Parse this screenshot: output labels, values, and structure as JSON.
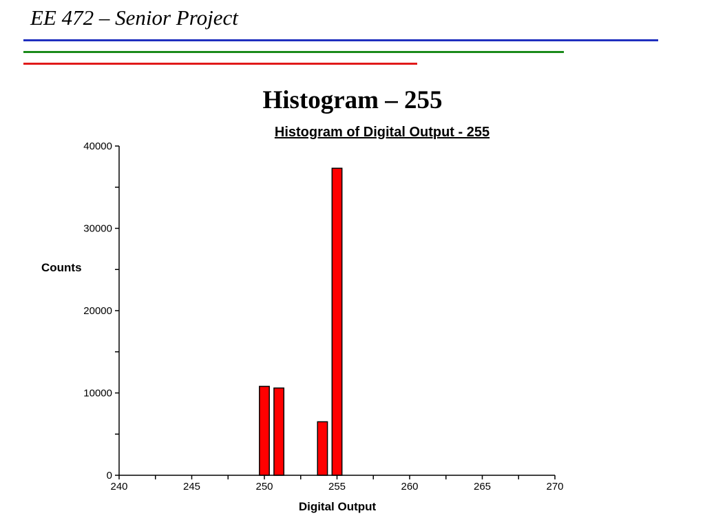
{
  "header": {
    "title": "EE 472 – Senior Project",
    "rule_colors": [
      "#1f2fbf",
      "#1a8a1a",
      "#e01919"
    ]
  },
  "slide_title": "Histogram – 255",
  "chart_data": {
    "type": "bar",
    "title": "Histogram of Digital Output - 255",
    "xlabel": "Digital Output",
    "ylabel": "Counts",
    "xlim": [
      240,
      270
    ],
    "ylim": [
      0,
      40000
    ],
    "x_ticks": [
      240,
      245,
      250,
      255,
      260,
      265,
      270
    ],
    "y_ticks": [
      0,
      10000,
      20000,
      30000,
      40000
    ],
    "x_tick_labels": [
      "240",
      "245",
      "250",
      "255",
      "260",
      "265",
      "270"
    ],
    "y_tick_labels": [
      "0",
      "10000",
      "20000",
      "30000",
      "40000"
    ],
    "x": [
      250,
      251,
      254,
      255
    ],
    "values": [
      10800,
      10600,
      6500,
      37300
    ],
    "bar_color": "#ff0000",
    "grid": false
  }
}
